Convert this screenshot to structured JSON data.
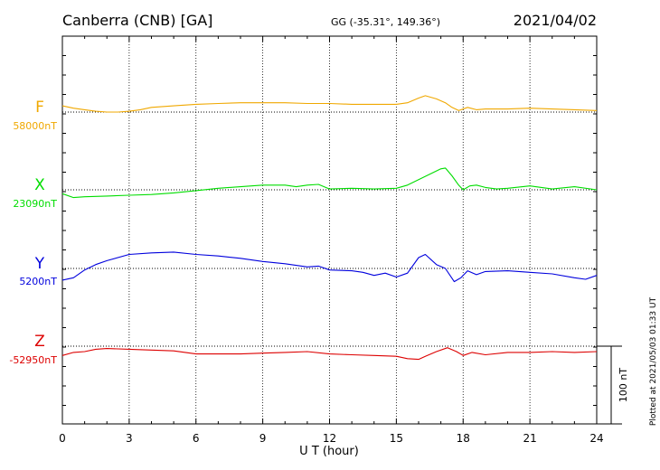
{
  "header": {
    "station": "Canberra (CNB)  [GA]",
    "coords": "GG (-35.31°, 149.36°)",
    "date": "2021/04/02"
  },
  "footnote": "Plotted at 2021/05/03 01:33 UT",
  "scale_bar_label": "100 nT",
  "chart_data": {
    "type": "line",
    "xlabel": "U T (hour)",
    "xlim": [
      0,
      24
    ],
    "xticks": [
      0,
      3,
      6,
      9,
      12,
      15,
      18,
      21,
      24
    ],
    "scale_bar_nT": 100,
    "grid": true,
    "series": [
      {
        "name": "F",
        "baseline_label": "58000nT",
        "baseline_nT": 58000,
        "color": "#f0a800",
        "x": [
          0,
          0.5,
          1,
          1.5,
          2,
          2.5,
          3,
          3.5,
          4,
          5,
          6,
          7,
          8,
          9,
          10,
          11,
          12,
          13,
          14,
          15,
          15.5,
          16,
          16.3,
          16.8,
          17.2,
          17.5,
          17.8,
          18.2,
          18.6,
          19,
          20,
          21,
          22,
          23,
          24
        ],
        "y": [
          58008,
          58005,
          58003,
          58001,
          58000,
          58000,
          58001,
          58003,
          58006,
          58008,
          58010,
          58011,
          58012,
          58012,
          58012,
          58011,
          58011,
          58010,
          58010,
          58010,
          58012,
          58018,
          58021,
          58017,
          58012,
          58006,
          58002,
          58006,
          58003,
          58004,
          58004,
          58005,
          58004,
          58003,
          58002
        ]
      },
      {
        "name": "X",
        "baseline_label": "23090nT",
        "baseline_nT": 23090,
        "color": "#00dd00",
        "x": [
          0,
          0.5,
          1,
          2,
          3,
          4,
          5,
          6,
          7,
          8,
          9,
          10,
          10.5,
          11,
          11.5,
          12,
          13,
          14,
          15,
          15.5,
          16,
          16.5,
          17,
          17.2,
          17.5,
          17.8,
          18,
          18.3,
          18.6,
          19,
          19.5,
          20,
          21,
          22,
          23,
          24
        ],
        "y": [
          23085,
          23080,
          23081,
          23082,
          23083,
          23084,
          23086,
          23089,
          23092,
          23094,
          23096,
          23096,
          23094,
          23096,
          23097,
          23091,
          23092,
          23091,
          23092,
          23096,
          23103,
          23110,
          23117,
          23118,
          23108,
          23096,
          23090,
          23095,
          23096,
          23093,
          23091,
          23092,
          23095,
          23091,
          23094,
          23090
        ]
      },
      {
        "name": "Y",
        "baseline_label": "5200nT",
        "baseline_nT": 5200,
        "color": "#0000dd",
        "x": [
          0,
          0.5,
          1,
          1.5,
          2,
          3,
          4,
          5,
          6,
          7,
          8,
          9,
          10,
          11,
          11.5,
          12,
          13,
          13.5,
          14,
          14.5,
          15,
          15.5,
          16,
          16.3,
          16.8,
          17.2,
          17.6,
          17.9,
          18.2,
          18.6,
          19,
          20,
          21,
          22,
          23,
          23.5,
          24
        ],
        "y": [
          5185,
          5188,
          5198,
          5205,
          5210,
          5218,
          5220,
          5221,
          5218,
          5216,
          5213,
          5209,
          5206,
          5202,
          5203,
          5198,
          5197,
          5195,
          5191,
          5194,
          5189,
          5194,
          5214,
          5218,
          5205,
          5200,
          5183,
          5188,
          5197,
          5192,
          5196,
          5197,
          5195,
          5193,
          5188,
          5186,
          5191
        ]
      },
      {
        "name": "Z",
        "baseline_label": "-52950nT",
        "baseline_nT": -52950,
        "color": "#dd0000",
        "x": [
          0,
          0.5,
          1,
          1.5,
          2,
          3,
          4,
          5,
          6,
          7,
          8,
          9,
          10,
          11,
          12,
          13,
          14,
          15,
          15.5,
          16,
          16.3,
          16.8,
          17.3,
          17.7,
          18,
          18.4,
          19,
          20,
          21,
          22,
          23,
          24
        ],
        "y": [
          -52962,
          -52958,
          -52957,
          -52954,
          -52953,
          -52954,
          -52955,
          -52956,
          -52960,
          -52960,
          -52960,
          -52959,
          -52958,
          -52957,
          -52960,
          -52961,
          -52962,
          -52963,
          -52966,
          -52967,
          -52963,
          -52957,
          -52952,
          -52957,
          -52962,
          -52958,
          -52961,
          -52958,
          -52958,
          -52957,
          -52958,
          -52957
        ]
      }
    ]
  }
}
